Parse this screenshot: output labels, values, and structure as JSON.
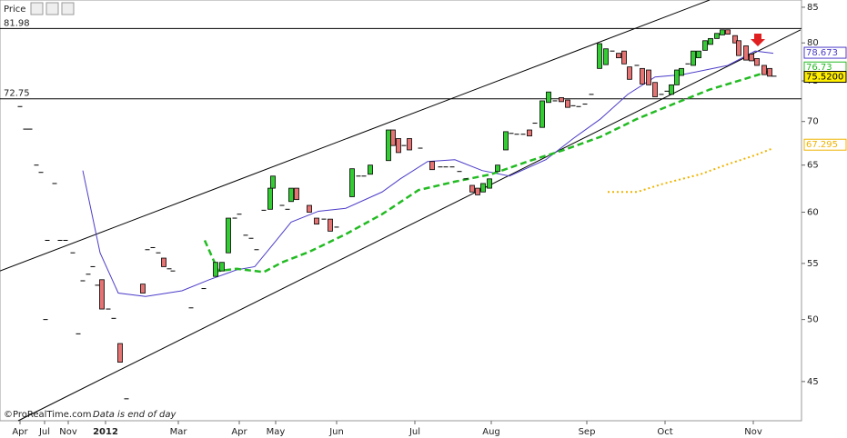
{
  "chart_data": {
    "type": "candlestick",
    "title": "Price",
    "source": "©ProRealTime.com",
    "note": "Data is end of day",
    "log_scale": true,
    "ylim": [
      42.1,
      86.05
    ],
    "yticks": [
      45,
      50,
      55,
      60,
      65,
      70,
      75,
      80,
      85
    ],
    "xlim": [
      0,
      88.1
    ],
    "xticks": [
      {
        "value": 2.2,
        "label": "Apr"
      },
      {
        "value": 4.9,
        "label": "Jul"
      },
      {
        "value": 7.5,
        "label": "Nov"
      },
      {
        "value": 11.6,
        "label": "2012"
      },
      {
        "value": 19.6,
        "label": "Mar"
      },
      {
        "value": 26.3,
        "label": "Apr"
      },
      {
        "value": 30.3,
        "label": "May"
      },
      {
        "value": 37,
        "label": "Jun"
      },
      {
        "value": 45.6,
        "label": "Jul"
      },
      {
        "value": 54,
        "label": "Aug"
      },
      {
        "value": 64.5,
        "label": "Sep"
      },
      {
        "value": 73.1,
        "label": "Oct"
      },
      {
        "value": 82.8,
        "label": "Nov"
      }
    ],
    "up_color": "#33cc33",
    "down_color": "#e57373",
    "candles": {
      "x": [
        2.2,
        2.8,
        3.3,
        4.0,
        4.5,
        5.0,
        5.2,
        6.0,
        6.6,
        7.2,
        8.0,
        8.6,
        9.1,
        9.7,
        10.2,
        10.7,
        11.2,
        11.9,
        12.5,
        13.2,
        13.9,
        15.7,
        16.2,
        16.8,
        17.4,
        18.0,
        18.6,
        19.0,
        21.0,
        22.4,
        23.7,
        24.4,
        25.1,
        25.8,
        26.3,
        27.0,
        27.6,
        28.2,
        29.0,
        29.7,
        30.0,
        31.0,
        31.6,
        32.0,
        32.6,
        34.0,
        34.8,
        35.6,
        36.3,
        37.0,
        38.7,
        39.4,
        40.0,
        40.7,
        42.7,
        43.2,
        43.8,
        44.4,
        45.0,
        46.2,
        47.5,
        48.4,
        49.0,
        49.7,
        50.5,
        51.2,
        51.9,
        52.5,
        53.1,
        53.8,
        54.7,
        55.6,
        56.2,
        56.8,
        57.5,
        58.2,
        58.8,
        59.6,
        60.3,
        61.0,
        61.7,
        62.4,
        63.0,
        63.6,
        64.3,
        65.0,
        65.9,
        66.6,
        67.3,
        68.0,
        68.6,
        69.2,
        70.0,
        70.6,
        71.3,
        72.0,
        72.7,
        73.3,
        73.8,
        74.4,
        74.9,
        75.6,
        76.2,
        76.8,
        77.5,
        78.1,
        78.8,
        79.4,
        80.0,
        80.8,
        81.2,
        82.0,
        82.6,
        83.2,
        84.0,
        84.6,
        85.1
      ],
      "open": [
        71.8,
        69.1,
        69.1,
        65,
        64.2,
        50,
        57.2,
        63,
        57.2,
        57.2,
        56,
        48.8,
        53.4,
        54,
        54.7,
        53,
        53.5,
        50.9,
        50.1,
        48,
        43.7,
        53.1,
        56.3,
        56.5,
        56,
        55.5,
        54.5,
        54.3,
        51,
        52.7,
        53.8,
        54.3,
        56,
        59.4,
        59.8,
        57.7,
        57.4,
        56.3,
        60.2,
        60.3,
        62.5,
        60.7,
        60.3,
        61.1,
        62.5,
        60.7,
        59.4,
        59.3,
        59.3,
        58.5,
        61.6,
        63.8,
        63.8,
        64,
        65.5,
        69,
        68,
        67.2,
        68,
        66.9,
        65.4,
        64.8,
        64.8,
        64.8,
        64.3,
        63.5,
        62.8,
        62.5,
        62.1,
        62.5,
        64.3,
        66.7,
        68.6,
        68.5,
        68.5,
        69,
        69.8,
        69.3,
        72.3,
        72.5,
        72.9,
        72.6,
        71.9,
        71.8,
        72.1,
        73.3,
        76.6,
        77.1,
        78.9,
        78.6,
        78.9,
        76.8,
        77,
        76.6,
        76.4,
        74.8,
        73.3,
        73.7,
        73.3,
        74.5,
        75.7,
        77.2,
        77,
        78,
        79,
        79.8,
        80.6,
        81.1,
        81.8,
        81,
        80.3,
        79.6,
        78.5,
        77.9,
        77,
        76.6,
        75.6
      ],
      "close": [
        71.8,
        69.1,
        69.1,
        65,
        64.2,
        50,
        57.2,
        63,
        57.2,
        57.2,
        56,
        48.8,
        53.4,
        54,
        54.7,
        53,
        50.9,
        50.9,
        50.1,
        46.5,
        43.7,
        52.3,
        56.3,
        56.5,
        56,
        54.7,
        54.5,
        54.3,
        51,
        52.7,
        55.1,
        55.1,
        59.4,
        59.4,
        59.8,
        57.7,
        57.4,
        56.3,
        60.2,
        62.5,
        63.8,
        60.7,
        60.3,
        62.5,
        61.3,
        60,
        58.8,
        59.3,
        58.1,
        58.5,
        64.6,
        63.8,
        63.8,
        65,
        69,
        67.2,
        66.4,
        67.2,
        66.7,
        66.9,
        64.5,
        64.8,
        64.8,
        64.8,
        64.3,
        63.5,
        62.1,
        61.8,
        63,
        63.5,
        65,
        68.8,
        68.6,
        68.5,
        68.5,
        68.3,
        69.8,
        72.5,
        73.6,
        72.5,
        72.4,
        71.7,
        71.9,
        71.8,
        72.1,
        73.3,
        79.9,
        79.2,
        78.9,
        78,
        77.2,
        75.2,
        77,
        74.6,
        74.5,
        73,
        73.3,
        73.7,
        74.5,
        76.4,
        76.6,
        77.2,
        78.9,
        78.9,
        80.3,
        80.6,
        81.3,
        81.8,
        81.2,
        80,
        78.3,
        77.7,
        77.6,
        77,
        75.8,
        75.6,
        75.6
      ]
    },
    "series": [
      {
        "color": "#4b3cc8",
        "style": "solid",
        "end_label": 78.673,
        "x": [
          9.1,
          11,
          13,
          16,
          20,
          23,
          26,
          28,
          30,
          32,
          35,
          38,
          42,
          44,
          47,
          50,
          53,
          56,
          60,
          63,
          66,
          69,
          72,
          75,
          80,
          83,
          85
        ],
        "values": [
          64.4,
          56,
          52.3,
          52,
          52.5,
          53.5,
          54.4,
          54.7,
          56.8,
          59,
          60.1,
          60.4,
          62.1,
          63.5,
          65.4,
          65.6,
          64.4,
          63.8,
          65.6,
          68,
          70.3,
          73.3,
          75.5,
          75.8,
          77,
          78.9,
          78.6
        ]
      },
      {
        "color": "#22bb22",
        "style": "dashed",
        "end_label": 76.73,
        "x": [
          22.5,
          24,
          26,
          29,
          31,
          34,
          38,
          42,
          46,
          50,
          54,
          58,
          62,
          66,
          70,
          74,
          78,
          82,
          85
        ],
        "values": [
          57.2,
          54.3,
          54.5,
          54.2,
          55.1,
          56.1,
          57.8,
          59.8,
          62.3,
          63.2,
          64,
          65.4,
          66.7,
          68.2,
          70.3,
          72.1,
          73.9,
          75.3,
          76.4
        ]
      },
      {
        "color": "#f0b400",
        "style": "dotted",
        "end_label": 67.295,
        "x": [
          66.8,
          70,
          73,
          77,
          80,
          83,
          85
        ],
        "values": [
          62.1,
          62.1,
          63,
          64,
          65.1,
          66.1,
          66.9
        ]
      }
    ],
    "last_price": {
      "value": 75.52,
      "label": "75.5200"
    },
    "hlines": [
      81.98,
      72.75
    ],
    "trendlines": [
      {
        "x": [
          0,
          78
        ],
        "y": [
          54.3,
          86.05
        ]
      },
      {
        "x": [
          2,
          88
        ],
        "y": [
          42.1,
          81.8
        ]
      }
    ]
  }
}
